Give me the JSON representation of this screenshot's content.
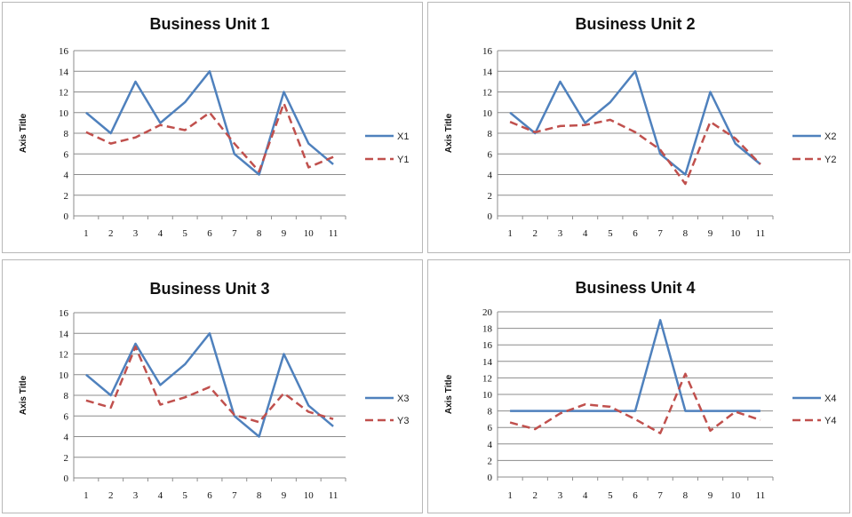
{
  "chart_data": [
    {
      "type": "line",
      "title": "Business  Unit 1",
      "ylabel": "Axis Title",
      "xlabel": "",
      "categories": [
        "1",
        "2",
        "3",
        "4",
        "5",
        "6",
        "7",
        "8",
        "9",
        "10",
        "11"
      ],
      "ylim": [
        0,
        16
      ],
      "yticks": [
        0,
        2,
        4,
        6,
        8,
        10,
        12,
        14,
        16
      ],
      "grid": true,
      "legend": "right",
      "series": [
        {
          "name": "X1",
          "color": "#4f81bd",
          "style": "solid",
          "values": [
            10,
            8,
            13,
            9,
            11,
            14,
            6,
            4,
            12,
            7,
            5
          ]
        },
        {
          "name": "Y1",
          "color": "#c0504d",
          "style": "dashed",
          "values": [
            8.1,
            7,
            7.6,
            8.8,
            8.3,
            10,
            7,
            4.3,
            10.9,
            4.7,
            5.7
          ]
        }
      ]
    },
    {
      "type": "line",
      "title": "Business Unit 2",
      "ylabel": "Axis Title",
      "xlabel": "",
      "categories": [
        "1",
        "2",
        "3",
        "4",
        "5",
        "6",
        "7",
        "8",
        "9",
        "10",
        "11"
      ],
      "ylim": [
        0,
        16
      ],
      "yticks": [
        0,
        2,
        4,
        6,
        8,
        10,
        12,
        14,
        16
      ],
      "grid": true,
      "legend": "right",
      "series": [
        {
          "name": "X2",
          "color": "#4f81bd",
          "style": "solid",
          "values": [
            10,
            8,
            13,
            9,
            11,
            14,
            6,
            4,
            12,
            7,
            5
          ]
        },
        {
          "name": "Y2",
          "color": "#c0504d",
          "style": "dashed",
          "values": [
            9.1,
            8.1,
            8.7,
            8.8,
            9.3,
            8.1,
            6.4,
            3.1,
            9.1,
            7.5,
            5
          ]
        }
      ]
    },
    {
      "type": "line",
      "title": "Business Unit 3",
      "ylabel": "Axis Title",
      "xlabel": "",
      "categories": [
        "1",
        "2",
        "3",
        "4",
        "5",
        "6",
        "7",
        "8",
        "9",
        "10",
        "11"
      ],
      "ylim": [
        0,
        16
      ],
      "yticks": [
        0,
        2,
        4,
        6,
        8,
        10,
        12,
        14,
        16
      ],
      "grid": true,
      "legend": "right",
      "series": [
        {
          "name": "X3",
          "color": "#4f81bd",
          "style": "solid",
          "values": [
            10,
            8,
            13,
            9,
            11,
            14,
            6,
            4,
            12,
            7,
            5
          ]
        },
        {
          "name": "Y3",
          "color": "#c0504d",
          "style": "dashed",
          "values": [
            7.5,
            6.8,
            12.7,
            7.1,
            7.8,
            8.8,
            6.1,
            5.4,
            8.2,
            6.4,
            5.7
          ]
        }
      ]
    },
    {
      "type": "line",
      "title": "Business Unit 4",
      "ylabel": "Axis Title",
      "xlabel": "",
      "categories": [
        "1",
        "2",
        "3",
        "4",
        "5",
        "6",
        "7",
        "8",
        "9",
        "10",
        "11"
      ],
      "ylim": [
        0,
        20
      ],
      "yticks": [
        0,
        2,
        4,
        6,
        8,
        10,
        12,
        14,
        16,
        18,
        20
      ],
      "grid": true,
      "legend": "right",
      "series": [
        {
          "name": "X4",
          "color": "#4f81bd",
          "style": "solid",
          "values": [
            8,
            8,
            8,
            8,
            8,
            8,
            19,
            8,
            8,
            8,
            8
          ]
        },
        {
          "name": "Y4",
          "color": "#c0504d",
          "style": "dashed",
          "values": [
            6.6,
            5.8,
            7.7,
            8.8,
            8.5,
            7,
            5.3,
            12.5,
            5.6,
            7.9,
            6.9
          ]
        }
      ]
    }
  ]
}
